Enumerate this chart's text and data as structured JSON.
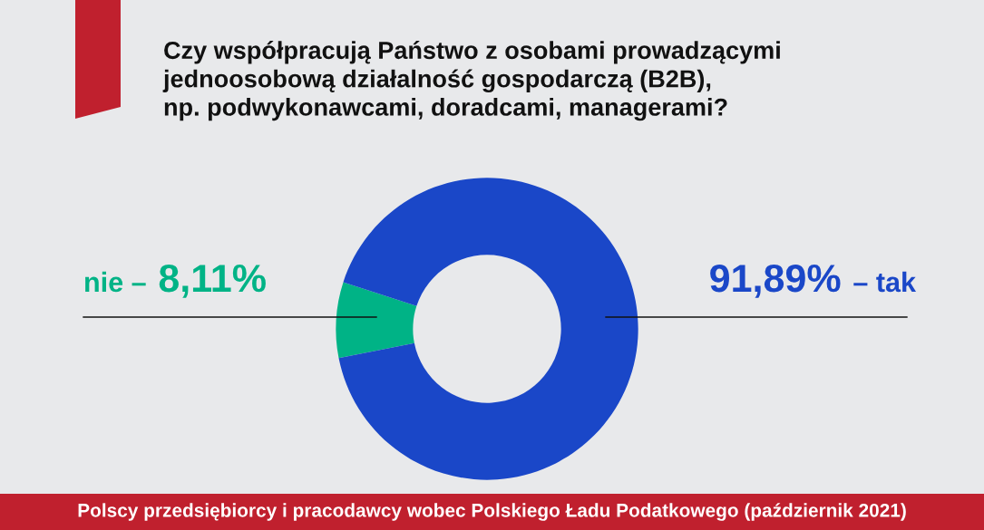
{
  "chart_data": {
    "type": "donut",
    "title": "Czy współpracują Państwo z osobami prowadzącymi\njednoosobową działalność gospodarczą (B2B),\nnp. podwykonawcami, doradcami, managerami?",
    "categories": [
      "nie –",
      "– tak"
    ],
    "values": [
      8.11,
      91.89
    ],
    "colors": [
      "#00b386",
      "#1a47c8"
    ],
    "value_labels": [
      "8,11%",
      "91,89%"
    ],
    "annotations": [
      "Polscy przedsiębiorcy i pracodawcy wobec Polskiego Ładu Podatkowego (październik 2021)"
    ]
  }
}
